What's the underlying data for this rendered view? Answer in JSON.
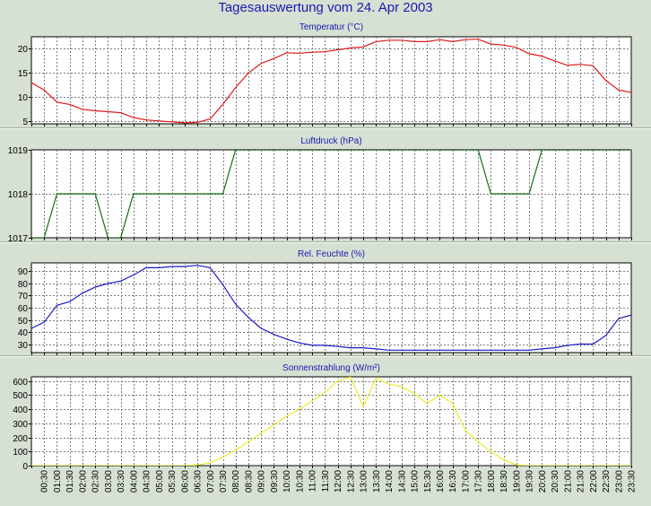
{
  "page_title": "Tagesauswertung vom 24. Apr 2003",
  "colors": {
    "background": "#d6e0d3",
    "plot_background": "#ffffff",
    "grid": "#7c7c7c",
    "temperature": "#e01818",
    "pressure": "#107010",
    "humidity": "#1a1ac8",
    "solar": "#ecec2c"
  },
  "x_tick_labels": [
    "00:30",
    "01:00",
    "01:30",
    "02:00",
    "02:30",
    "03:00",
    "03:30",
    "04:00",
    "04:30",
    "05:00",
    "05:30",
    "06:00",
    "06:30",
    "07:00",
    "07:30",
    "08:00",
    "08:30",
    "09:00",
    "09:30",
    "10:00",
    "10:30",
    "11:00",
    "11:30",
    "12:00",
    "12:30",
    "13:00",
    "13:30",
    "14:00",
    "14:30",
    "15:00",
    "15:30",
    "16:00",
    "16:30",
    "17:00",
    "17:30",
    "18:00",
    "18:30",
    "19:00",
    "19:30",
    "20:00",
    "20:30",
    "21:00",
    "21:30",
    "22:00",
    "22:30",
    "23:00",
    "23:30"
  ],
  "chart_data": [
    {
      "type": "line",
      "title": "Temperatur (°C)",
      "x": [
        0,
        0.5,
        1,
        1.5,
        2,
        2.5,
        3,
        3.5,
        4,
        4.5,
        5,
        5.5,
        6,
        6.5,
        7,
        7.5,
        8,
        8.5,
        9,
        9.5,
        10,
        10.5,
        11,
        11.5,
        12,
        12.5,
        13,
        13.5,
        14,
        14.5,
        15,
        15.5,
        16,
        16.5,
        17,
        17.5,
        18,
        18.5,
        19,
        19.5,
        20,
        20.5,
        21,
        21.5,
        22,
        22.5,
        23,
        23.5
      ],
      "series": [
        {
          "values": [
            13,
            11.5,
            9,
            8.5,
            7.5,
            7.2,
            7,
            6.8,
            5.8,
            5.3,
            5.1,
            4.9,
            4.7,
            4.8,
            5.5,
            8.5,
            12,
            15,
            17,
            18,
            19.2,
            19.1,
            19.3,
            19.4,
            19.8,
            20.2,
            20.4,
            21.5,
            21.8,
            21.8,
            21.5,
            21.5,
            21.9,
            21.5,
            21.9,
            22,
            21,
            20.8,
            20.3,
            19,
            18.5,
            17.5,
            16.6,
            16.8,
            16.5,
            13.5,
            11.5,
            11
          ]
        }
      ],
      "ylim": [
        4.5,
        22.5
      ],
      "yticks": [
        5,
        10,
        15,
        20
      ],
      "grid": true,
      "legend": "none"
    },
    {
      "type": "line",
      "title": "Luftdruck (hPa)",
      "x": [
        0,
        0.5,
        1,
        1.5,
        2,
        2.5,
        3,
        3.5,
        4,
        4.5,
        5,
        5.5,
        6,
        6.5,
        7,
        7.5,
        8,
        8.5,
        9,
        9.5,
        10,
        10.5,
        11,
        11.5,
        12,
        12.5,
        13,
        13.5,
        14,
        14.5,
        15,
        15.5,
        16,
        16.5,
        17,
        17.5,
        18,
        18.5,
        19,
        19.5,
        20,
        20.5,
        21,
        21.5,
        22,
        22.5,
        23,
        23.5
      ],
      "series": [
        {
          "values": [
            1017,
            1017,
            1018,
            1018,
            1018,
            1018,
            1017,
            1017,
            1018,
            1018,
            1018,
            1018,
            1018,
            1018,
            1018,
            1018,
            1019,
            1019,
            1019,
            1019,
            1019,
            1019,
            1019,
            1019,
            1019,
            1019,
            1019,
            1019,
            1019,
            1019,
            1019,
            1019,
            1019,
            1019,
            1019,
            1019,
            1018,
            1018,
            1018,
            1018,
            1019,
            1019,
            1019,
            1019,
            1019,
            1019,
            1019,
            1019
          ]
        }
      ],
      "ylim": [
        1017,
        1019
      ],
      "yticks": [
        1017,
        1018,
        1019
      ],
      "grid": true,
      "legend": "none"
    },
    {
      "type": "line",
      "title": "Rel. Feuchte (%)",
      "x": [
        0,
        0.5,
        1,
        1.5,
        2,
        2.5,
        3,
        3.5,
        4,
        4.5,
        5,
        5.5,
        6,
        6.5,
        7,
        7.5,
        8,
        8.5,
        9,
        9.5,
        10,
        10.5,
        11,
        11.5,
        12,
        12.5,
        13,
        13.5,
        14,
        14.5,
        15,
        15.5,
        16,
        16.5,
        17,
        17.5,
        18,
        18.5,
        19,
        19.5,
        20,
        20.5,
        21,
        21.5,
        22,
        22.5,
        23,
        23.5
      ],
      "series": [
        {
          "values": [
            43,
            48,
            62,
            65,
            72,
            77,
            80,
            82,
            87,
            93,
            93,
            94,
            94,
            95,
            93,
            79,
            63,
            52,
            43,
            38,
            34,
            31,
            29,
            29,
            28,
            27,
            27,
            26,
            25,
            25,
            25,
            25,
            25,
            25,
            25,
            25,
            25,
            25,
            25,
            25,
            26,
            27,
            29,
            30,
            30,
            37,
            51,
            54
          ]
        }
      ],
      "ylim": [
        23,
        97
      ],
      "yticks": [
        30,
        40,
        50,
        60,
        70,
        80,
        90
      ],
      "grid": true,
      "legend": "none"
    },
    {
      "type": "line",
      "title": "Sonnenstrahlung (W/m²)",
      "x": [
        0,
        0.5,
        1,
        1.5,
        2,
        2.5,
        3,
        3.5,
        4,
        4.5,
        5,
        5.5,
        6,
        6.5,
        7,
        7.5,
        8,
        8.5,
        9,
        9.5,
        10,
        10.5,
        11,
        11.5,
        12,
        12.5,
        13,
        13.5,
        14,
        14.5,
        15,
        15.5,
        16,
        16.5,
        17,
        17.5,
        18,
        18.5,
        19,
        19.5,
        20,
        20.5,
        21,
        21.5,
        22,
        22.5,
        23,
        23.5
      ],
      "series": [
        {
          "values": [
            0,
            0,
            0,
            0,
            0,
            0,
            0,
            0,
            0,
            0,
            0,
            0,
            0,
            5,
            20,
            60,
            110,
            170,
            230,
            290,
            350,
            400,
            460,
            520,
            600,
            630,
            420,
            620,
            580,
            560,
            510,
            440,
            500,
            440,
            250,
            170,
            100,
            40,
            5,
            0,
            0,
            0,
            0,
            0,
            0,
            0,
            0,
            0
          ]
        }
      ],
      "ylim": [
        0,
        630
      ],
      "yticks": [
        0,
        100,
        200,
        300,
        400,
        500,
        600
      ],
      "grid": true,
      "legend": "none"
    }
  ]
}
